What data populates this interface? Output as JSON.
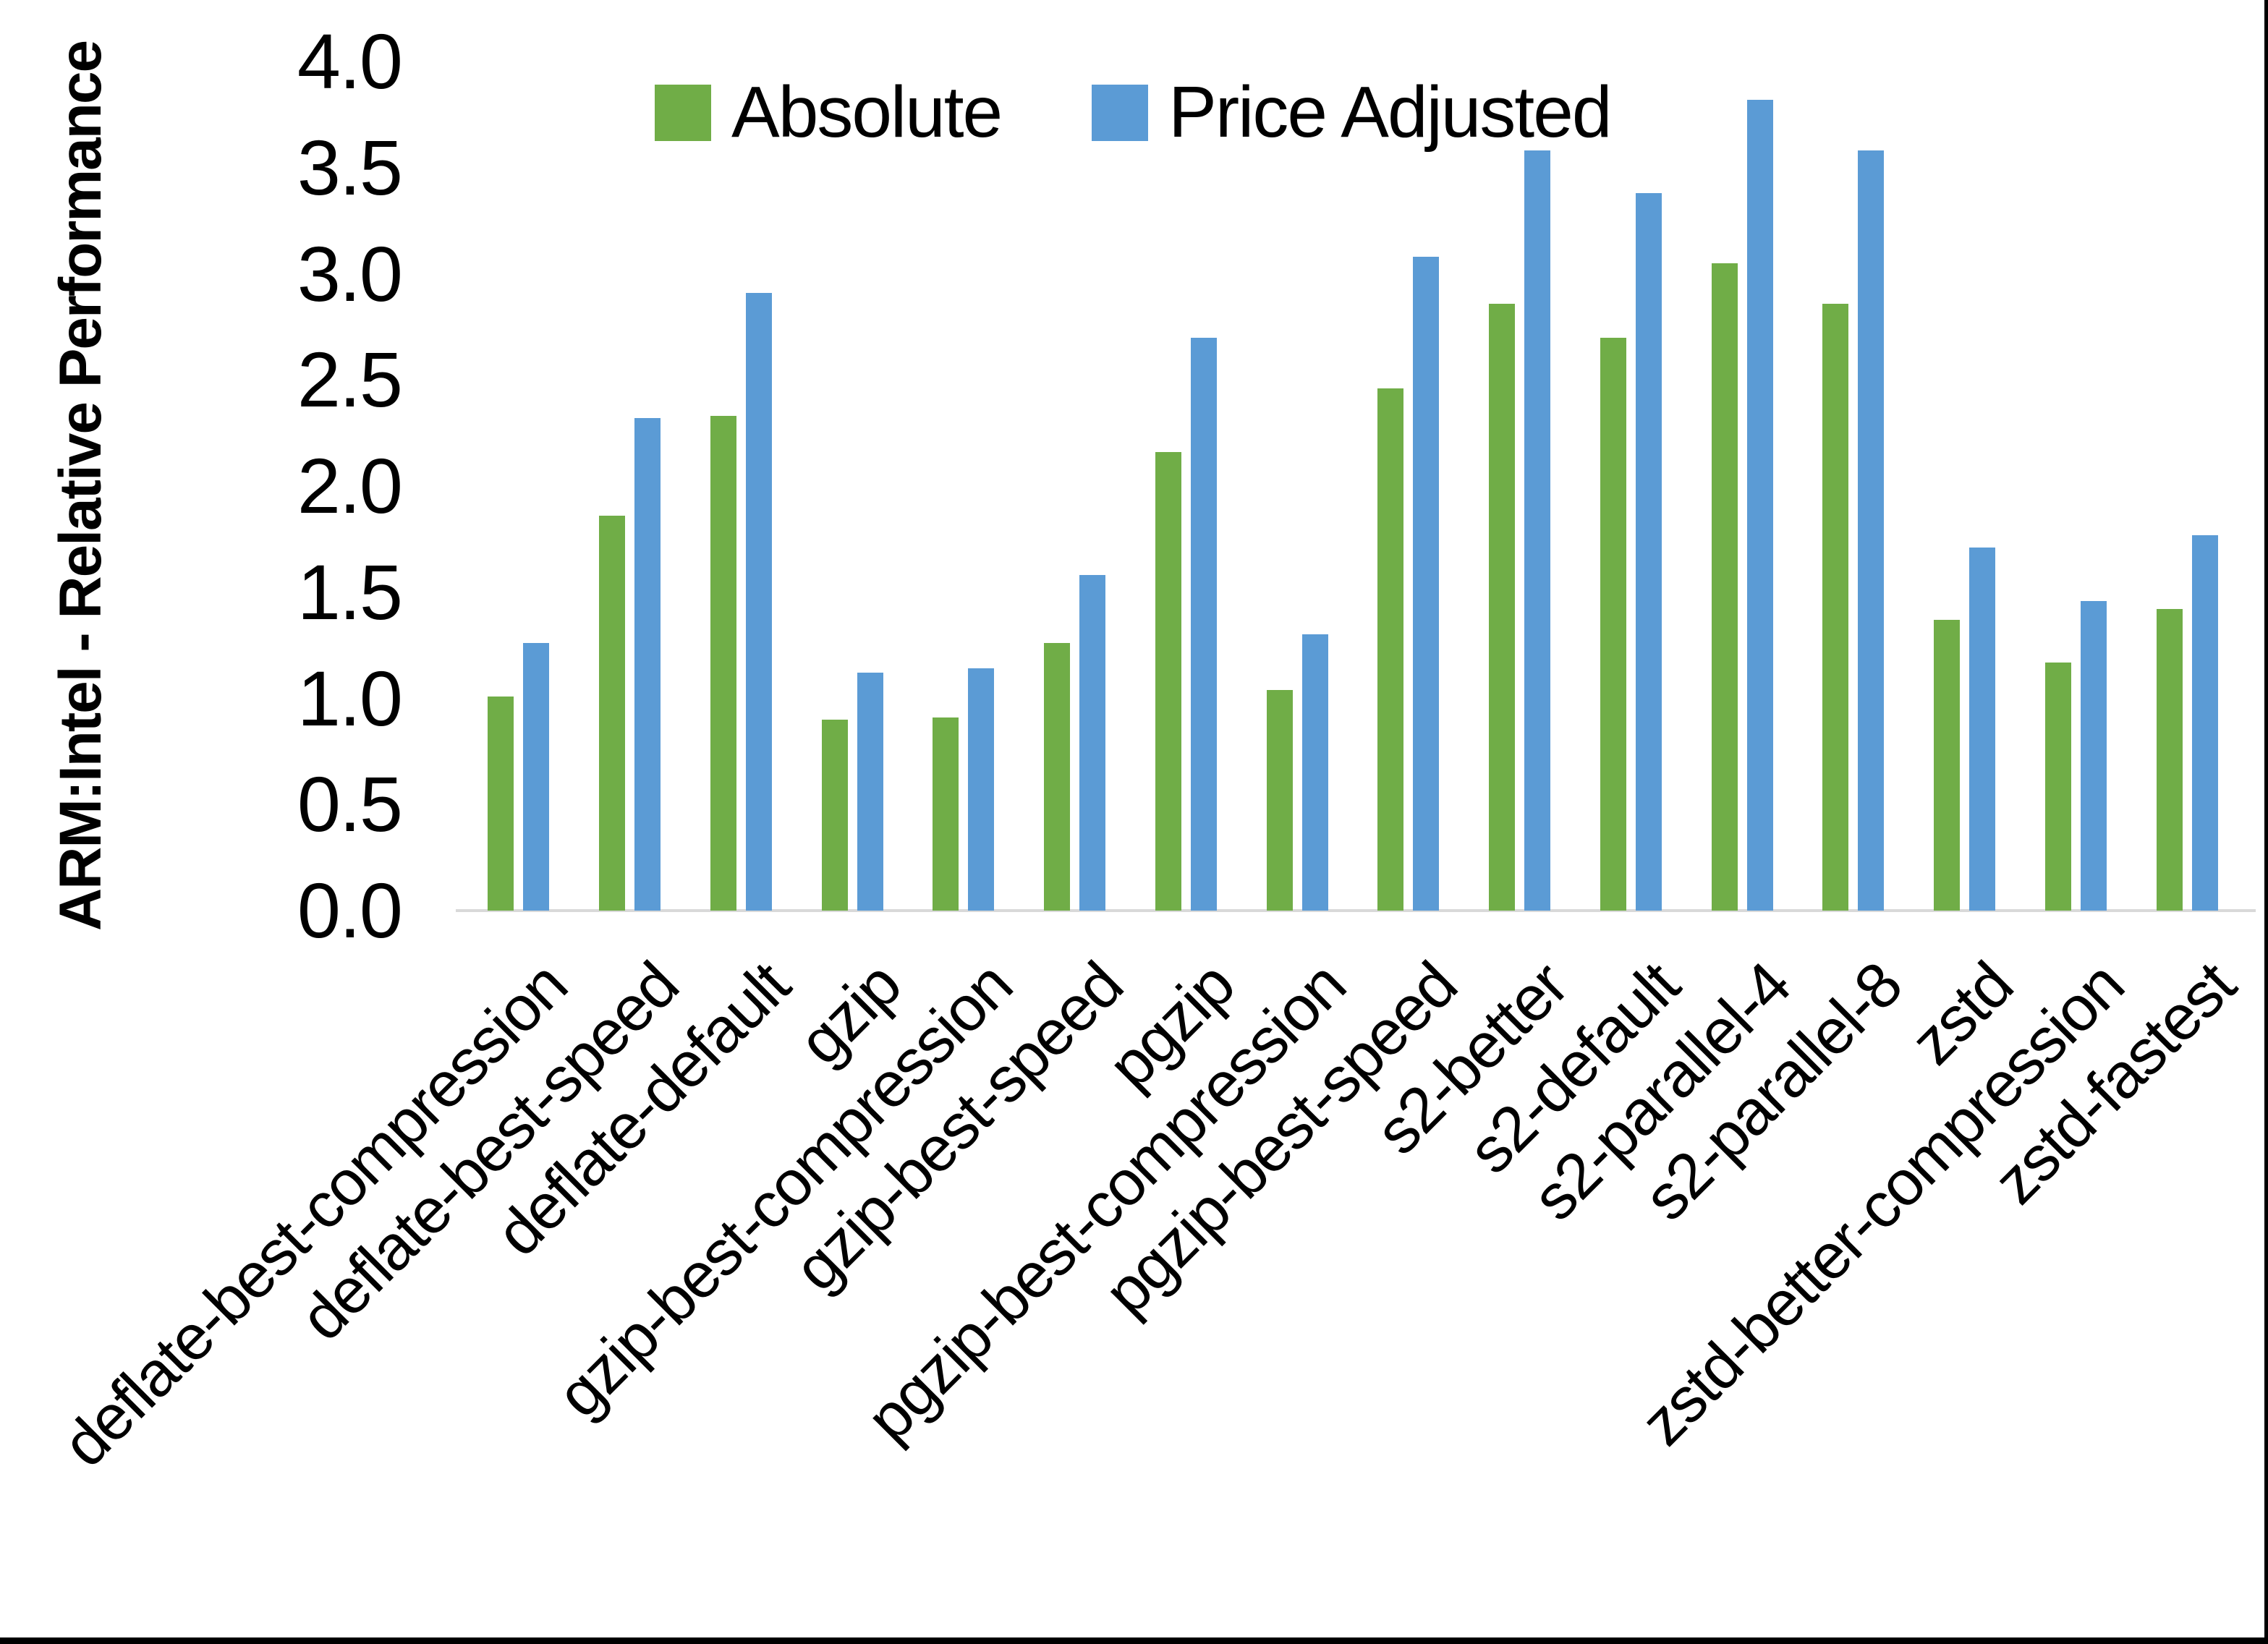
{
  "chart_data": {
    "type": "bar",
    "title": "",
    "xlabel": "",
    "ylabel": "ARM:Intel - Relative Performance",
    "ylim": [
      0.0,
      4.0
    ],
    "yticks": [
      "0.0",
      "0.5",
      "1.0",
      "1.5",
      "2.0",
      "2.5",
      "3.0",
      "3.5",
      "4.0"
    ],
    "grid": false,
    "legend_position": "top-center",
    "categories": [
      "deflate-best-compression",
      "deflate-best-speed",
      "deflate-default",
      "gzip",
      "gzip-best-compression",
      "gzip-best-speed",
      "pgzip",
      "pgzip-best-compression",
      "pgzip-best-speed",
      "s2-better",
      "s2-default",
      "s2-parallel-4",
      "s2-parallel-8",
      "zstd",
      "zstd-better-compression",
      "zstd-fastest"
    ],
    "series": [
      {
        "name": "Absolute",
        "color": "#70AD47",
        "values": [
          1.01,
          1.86,
          2.33,
          0.9,
          0.91,
          1.26,
          2.16,
          1.04,
          2.46,
          2.86,
          2.7,
          3.05,
          2.86,
          1.37,
          1.17,
          1.42
        ]
      },
      {
        "name": "Price Adjusted",
        "color": "#5B9BD5",
        "values": [
          1.26,
          2.32,
          2.91,
          1.12,
          1.14,
          1.58,
          2.7,
          1.3,
          3.08,
          3.58,
          3.38,
          3.82,
          3.58,
          1.71,
          1.46,
          1.77
        ]
      }
    ]
  },
  "colors": {
    "axis_line": "#d9d9d9",
    "background": "#ffffff",
    "frame_border": "#000000",
    "text": "#000000"
  }
}
